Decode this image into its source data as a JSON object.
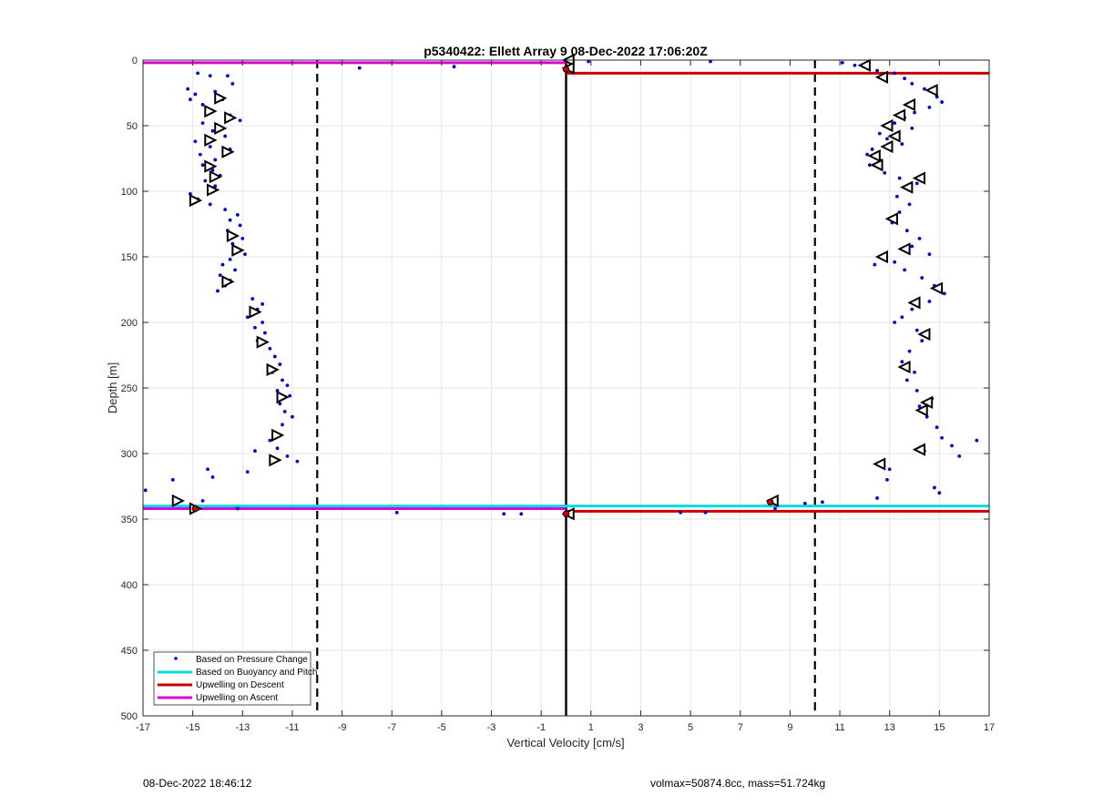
{
  "chart_data": {
    "type": "scatter",
    "title": "p5340422: Ellett Array 9 08-Dec-2022 17:06:20Z",
    "xlabel": "Vertical Velocity [cm/s]",
    "ylabel": "Depth [m]",
    "xlim": [
      -17,
      17
    ],
    "ylim": [
      0,
      500
    ],
    "y_reversed": true,
    "grid": true,
    "x_ticks": [
      -17,
      -15,
      -13,
      -11,
      -9,
      -7,
      -5,
      -3,
      -1,
      1,
      3,
      5,
      7,
      9,
      11,
      13,
      15,
      17
    ],
    "y_ticks": [
      0,
      50,
      100,
      150,
      200,
      250,
      300,
      350,
      400,
      450,
      500
    ],
    "reference_lines": {
      "dashed_x": [
        -10,
        10
      ],
      "solid_x": 0,
      "color": "#000000"
    },
    "legend": {
      "position": "bottom-left",
      "entries": [
        {
          "label": "Based on Pressure Change",
          "style": "dot",
          "color": "#0000cc"
        },
        {
          "label": "Based on Buoyancy and Pitch",
          "style": "line",
          "color": "#00dddd"
        },
        {
          "label": "Upwelling on Descent",
          "style": "line",
          "color": "#cc0000"
        },
        {
          "label": "Upwelling on Ascent",
          "style": "line",
          "color": "#dd00dd"
        }
      ]
    },
    "hlines": [
      {
        "series": "Based on Buoyancy and Pitch",
        "y": 340,
        "x": [
          -17,
          17
        ],
        "color": "#00dddd"
      },
      {
        "series": "Upwelling on Descent",
        "y": 10,
        "x": [
          0,
          17
        ],
        "color": "#cc0000"
      },
      {
        "series": "Upwelling on Descent",
        "y": 344,
        "x": [
          0,
          17
        ],
        "color": "#cc0000"
      },
      {
        "series": "Upwelling on Ascent",
        "y": 2,
        "x": [
          -17,
          0
        ],
        "color": "#dd00dd"
      },
      {
        "series": "Upwelling on Ascent",
        "y": 342,
        "x": [
          -17,
          0
        ],
        "color": "#dd00dd"
      }
    ],
    "pressure_points": [
      [
        -14.8,
        10
      ],
      [
        -14.3,
        12
      ],
      [
        -15.2,
        22
      ],
      [
        -14.9,
        26
      ],
      [
        -15.1,
        30
      ],
      [
        -14.6,
        34
      ],
      [
        -13.6,
        12
      ],
      [
        -13.4,
        18
      ],
      [
        -14.1,
        24
      ],
      [
        -13.8,
        30
      ],
      [
        -14.4,
        38
      ],
      [
        -13.5,
        42
      ],
      [
        -13.1,
        46
      ],
      [
        -14.6,
        48
      ],
      [
        -14.2,
        54
      ],
      [
        -13.7,
        58
      ],
      [
        -14.9,
        62
      ],
      [
        -14.3,
        66
      ],
      [
        -13.5,
        68
      ],
      [
        -14.7,
        72
      ],
      [
        -14.1,
        76
      ],
      [
        -14.6,
        80
      ],
      [
        -14.2,
        84
      ],
      [
        -13.9,
        88
      ],
      [
        -14.5,
        92
      ],
      [
        -14.1,
        96
      ],
      [
        -15.1,
        102
      ],
      [
        -14.8,
        106
      ],
      [
        -14.3,
        110
      ],
      [
        -13.7,
        114
      ],
      [
        -13.2,
        118
      ],
      [
        -13.5,
        122
      ],
      [
        -13.1,
        126
      ],
      [
        -13.6,
        130
      ],
      [
        -13.0,
        136
      ],
      [
        -13.4,
        140
      ],
      [
        -13.2,
        144
      ],
      [
        -12.9,
        148
      ],
      [
        -13.5,
        152
      ],
      [
        -13.8,
        156
      ],
      [
        -13.3,
        160
      ],
      [
        -13.9,
        164
      ],
      [
        -13.5,
        168
      ],
      [
        -13.7,
        172
      ],
      [
        -14.0,
        176
      ],
      [
        -12.6,
        182
      ],
      [
        -12.2,
        186
      ],
      [
        -12.4,
        190
      ],
      [
        -12.8,
        196
      ],
      [
        -12.2,
        200
      ],
      [
        -12.5,
        204
      ],
      [
        -12.1,
        208
      ],
      [
        -12.4,
        214
      ],
      [
        -11.9,
        220
      ],
      [
        -11.7,
        226
      ],
      [
        -11.5,
        232
      ],
      [
        -11.8,
        238
      ],
      [
        -11.4,
        244
      ],
      [
        -11.2,
        248
      ],
      [
        -11.6,
        252
      ],
      [
        -11.1,
        256
      ],
      [
        -11.5,
        262
      ],
      [
        -11.3,
        268
      ],
      [
        -11.0,
        272
      ],
      [
        -11.4,
        278
      ],
      [
        -11.7,
        284
      ],
      [
        -11.9,
        290
      ],
      [
        -11.6,
        296
      ],
      [
        -11.2,
        302
      ],
      [
        -12.5,
        298
      ],
      [
        -10.8,
        306
      ],
      [
        -12.8,
        314
      ],
      [
        -14.4,
        312
      ],
      [
        -16.9,
        328
      ],
      [
        -15.8,
        320
      ],
      [
        -14.2,
        318
      ],
      [
        -14.6,
        336
      ],
      [
        -13.2,
        342
      ],
      [
        -8.3,
        6
      ],
      [
        -4.5,
        5
      ],
      [
        -6.8,
        345
      ],
      [
        -2.5,
        346
      ],
      [
        -1.8,
        346
      ],
      [
        0.9,
        1
      ],
      [
        5.8,
        1
      ],
      [
        11.1,
        2
      ],
      [
        11.6,
        4
      ],
      [
        12.5,
        8
      ],
      [
        13.2,
        10
      ],
      [
        13.6,
        14
      ],
      [
        13.9,
        18
      ],
      [
        14.4,
        22
      ],
      [
        14.9,
        28
      ],
      [
        15.1,
        32
      ],
      [
        14.6,
        36
      ],
      [
        14.0,
        40
      ],
      [
        13.6,
        44
      ],
      [
        13.2,
        48
      ],
      [
        13.9,
        52
      ],
      [
        12.6,
        56
      ],
      [
        12.9,
        60
      ],
      [
        13.5,
        64
      ],
      [
        12.3,
        68
      ],
      [
        12.1,
        72
      ],
      [
        12.6,
        76
      ],
      [
        12.2,
        80
      ],
      [
        12.8,
        86
      ],
      [
        13.4,
        90
      ],
      [
        14.1,
        94
      ],
      [
        13.7,
        98
      ],
      [
        13.3,
        104
      ],
      [
        13.8,
        110
      ],
      [
        13.4,
        116
      ],
      [
        13.1,
        124
      ],
      [
        13.7,
        130
      ],
      [
        14.2,
        136
      ],
      [
        13.9,
        142
      ],
      [
        14.6,
        148
      ],
      [
        13.2,
        154
      ],
      [
        12.4,
        156
      ],
      [
        13.6,
        160
      ],
      [
        14.3,
        166
      ],
      [
        14.8,
        172
      ],
      [
        15.2,
        178
      ],
      [
        14.6,
        184
      ],
      [
        13.9,
        190
      ],
      [
        13.5,
        196
      ],
      [
        13.2,
        200
      ],
      [
        14.1,
        206
      ],
      [
        14.3,
        214
      ],
      [
        13.8,
        222
      ],
      [
        13.5,
        230
      ],
      [
        14.0,
        238
      ],
      [
        13.7,
        244
      ],
      [
        14.1,
        252
      ],
      [
        14.7,
        258
      ],
      [
        14.2,
        264
      ],
      [
        14.5,
        272
      ],
      [
        14.9,
        280
      ],
      [
        15.1,
        288
      ],
      [
        15.5,
        294
      ],
      [
        16.5,
        290
      ],
      [
        15.8,
        302
      ],
      [
        14.4,
        298
      ],
      [
        13.0,
        312
      ],
      [
        12.9,
        320
      ],
      [
        12.5,
        334
      ],
      [
        14.8,
        326
      ],
      [
        15.0,
        330
      ],
      [
        9.6,
        338
      ],
      [
        10.3,
        337
      ],
      [
        8.4,
        342
      ],
      [
        4.6,
        345
      ],
      [
        5.6,
        345
      ]
    ],
    "marker_points": [
      [
        -13.9,
        29
      ],
      [
        -13.5,
        44
      ],
      [
        -14.3,
        39
      ],
      [
        -13.9,
        52
      ],
      [
        -14.3,
        61
      ],
      [
        -13.6,
        70
      ],
      [
        -14.3,
        81
      ],
      [
        -14.1,
        89
      ],
      [
        -14.2,
        99
      ],
      [
        -14.9,
        107
      ],
      [
        -13.4,
        134
      ],
      [
        -13.2,
        145
      ],
      [
        -13.6,
        169
      ],
      [
        -12.5,
        192
      ],
      [
        -12.2,
        215
      ],
      [
        -11.8,
        236
      ],
      [
        -11.4,
        257
      ],
      [
        -11.6,
        286
      ],
      [
        -11.7,
        305
      ],
      [
        -15.6,
        336
      ],
      [
        -14.9,
        342
      ],
      [
        12.0,
        4
      ],
      [
        12.7,
        13
      ],
      [
        14.7,
        23
      ],
      [
        13.8,
        34
      ],
      [
        13.4,
        42
      ],
      [
        12.9,
        50
      ],
      [
        13.2,
        58
      ],
      [
        12.9,
        66
      ],
      [
        12.4,
        73
      ],
      [
        12.5,
        80
      ],
      [
        14.2,
        90
      ],
      [
        13.7,
        97
      ],
      [
        13.1,
        121
      ],
      [
        13.6,
        144
      ],
      [
        12.7,
        150
      ],
      [
        14.9,
        174
      ],
      [
        14.0,
        185
      ],
      [
        14.4,
        209
      ],
      [
        13.6,
        234
      ],
      [
        14.5,
        261
      ],
      [
        14.3,
        267
      ],
      [
        14.2,
        297
      ],
      [
        12.6,
        308
      ],
      [
        8.3,
        336
      ],
      [
        0.1,
        0
      ],
      [
        0.1,
        6
      ],
      [
        0.1,
        346
      ]
    ],
    "circle_points": [
      [
        8.2,
        337
      ],
      [
        0.0,
        7
      ],
      [
        0.0,
        346
      ],
      [
        -14.9,
        342
      ]
    ]
  },
  "footer": {
    "timestamp": "08-Dec-2022 18:46:12",
    "vehicle_info": "volmax=50874.8cc, mass=51.724kg"
  }
}
